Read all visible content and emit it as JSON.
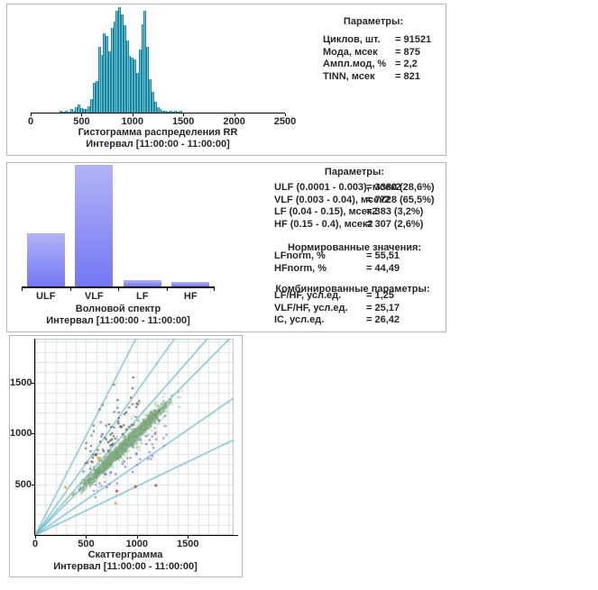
{
  "colors": {
    "panel_border": "#b6b6b6",
    "text": "#272727",
    "hist_bar_fill": "#6cc7d6",
    "hist_bar_edge": "#1f859e",
    "spec_bar_top": "#b2b4f6",
    "spec_bar_bottom": "#7377f3",
    "axis": "#000000",
    "grid": "#dbe3e3",
    "grid_border": "#b9c4c4",
    "diag_line": "#68b7cb"
  },
  "hist": {
    "params_header": "Параметры:",
    "params": [
      {
        "label": "Циклов, шт.",
        "value": "= 91521"
      },
      {
        "label": "Мода, мсек",
        "value": "= 875"
      },
      {
        "label": "Ампл.мод, %",
        "value": "= 2,2"
      },
      {
        "label": "TINN, мсек",
        "value": "= 821"
      }
    ],
    "x_ticks": [
      "0",
      "500",
      "1000",
      "1500",
      "2000",
      "2500"
    ],
    "title": "Гистограмма распределения RR",
    "subtitle": "Интервал [11:00:00 - 11:00:00]"
  },
  "spec": {
    "params_header": "Параметры:",
    "params": [
      {
        "label": "ULF (0.0001 - 0.003), мсек2",
        "value": "= 3380 (28,6%)"
      },
      {
        "label": "VLF (0.003 - 0.04), мсек2",
        "value": "= 7728 (65,5%)"
      },
      {
        "label": "LF (0.04 - 0.15), мсек2",
        "value": "= 383 (3,2%)"
      },
      {
        "label": "HF (0.15 - 0.4), мсек2",
        "value": "= 307 (2,6%)"
      }
    ],
    "norm_header": "Нормированные значения:",
    "norm_params": [
      {
        "label": "LFnorm, %",
        "value": "= 55,51"
      },
      {
        "label": "HFnorm, %",
        "value": "= 44,49"
      }
    ],
    "combined_header": "Комбинированные параметры:",
    "combined_params": [
      {
        "label": "LF/HF, усл.ед.",
        "value": "= 1,25"
      },
      {
        "label": "VLF/HF, усл.ед.",
        "value": "= 25,17"
      },
      {
        "label": "IC, усл.ед.",
        "value": "= 26,42"
      }
    ],
    "categories": [
      "ULF",
      "VLF",
      "LF",
      "HF"
    ],
    "title": "Волновой спектр",
    "subtitle": "Интервал [11:00:00 - 11:00:00]"
  },
  "scat": {
    "x_ticks": [
      "0",
      "500",
      "1000",
      "1500"
    ],
    "y_ticks": [
      "500",
      "1000",
      "1500"
    ],
    "title": "Скаттерграмма",
    "subtitle": "Интервал [11:00:00 - 11:00:00]"
  },
  "chart_data": [
    {
      "type": "bar",
      "subtype": "histogram",
      "title": "Гистограмма распределения RR",
      "subtitle": "Интервал [11:00:00 - 11:00:00]",
      "xlim": [
        0,
        2500
      ],
      "x_tick_labels": [
        0,
        500,
        1000,
        1500,
        2000,
        2500
      ],
      "bin_start_msec": 300,
      "bin_width_msec": 25,
      "units": "percent_of_max_bar",
      "values_pct": [
        2,
        1,
        2,
        1,
        3,
        2,
        5,
        8,
        4,
        3,
        3,
        6,
        13,
        28,
        30,
        62,
        55,
        75,
        73,
        58,
        80,
        86,
        97,
        100,
        93,
        83,
        68,
        54,
        52,
        50,
        38,
        60,
        84,
        97,
        62,
        32,
        20,
        10,
        5,
        3,
        2,
        2,
        1,
        2,
        1,
        2,
        1,
        2
      ]
    },
    {
      "type": "bar",
      "title": "Волновой спектр",
      "subtitle": "Интервал [11:00:00 - 11:00:00]",
      "categories": [
        "ULF",
        "VLF",
        "LF",
        "HF"
      ],
      "values_msec2": [
        3380,
        7728,
        383,
        307
      ],
      "percents": [
        28.6,
        65.5,
        3.2,
        2.6
      ],
      "ylim": [
        0,
        7728
      ]
    },
    {
      "type": "scatter",
      "title": "Скаттерграмма",
      "subtitle": "Интервал [11:00:00 - 11:00:00]",
      "xlim": [
        0,
        1950
      ],
      "ylim": [
        0,
        1930
      ],
      "grid_step": 100,
      "tick_step": 500,
      "ref_line_slopes": [
        1.95,
        1.41,
        1.14,
        1.01,
        0.69,
        0.48
      ],
      "clusters": [
        {
          "name": "main-cloud",
          "mode": "diag",
          "colors": [
            "#6f9e6f",
            "#87af87"
          ],
          "count": 1500,
          "t_min": 435,
          "t_max": 1325,
          "perp_sigma": 15,
          "along_sigma": 40,
          "alpha": 0.85
        },
        {
          "name": "halo-cloud",
          "mode": "diag",
          "colors": [
            "#84ad84",
            "#97b997"
          ],
          "count": 280,
          "t_min": 450,
          "t_max": 1430,
          "perp_sigma": 38,
          "along_sigma": 60,
          "alpha": 0.6
        },
        {
          "name": "gray-outliers",
          "mode": "above",
          "colors": [
            "#4c463e",
            "#5c564c"
          ],
          "count": 74,
          "x_min": 470,
          "x_max": 1030,
          "dy_min": 110,
          "dy_max": 720,
          "alpha": 0.9
        },
        {
          "name": "purple-outliers",
          "mode": "below",
          "colors": [
            "#7a66d8",
            "#6a5ae0"
          ],
          "count": 48,
          "x_min": 560,
          "x_max": 1300,
          "dy_min": 90,
          "dy_max": 480,
          "alpha": 0.9
        }
      ],
      "points": [
        {
          "x": 985,
          "y": 475,
          "color": "#cc3a2e"
        },
        {
          "x": 1185,
          "y": 488,
          "color": "#cc3a2e"
        },
        {
          "x": 802,
          "y": 432,
          "color": "#cc3a2e"
        },
        {
          "x": 300,
          "y": 468,
          "color": "#e39f2f"
        },
        {
          "x": 372,
          "y": 398,
          "color": "#e39f2f"
        },
        {
          "x": 622,
          "y": 758,
          "color": "#e39f2f"
        },
        {
          "x": 630,
          "y": 740,
          "color": "#e39f2f"
        },
        {
          "x": 790,
          "y": 312,
          "color": "#e39f2f"
        }
      ]
    }
  ]
}
